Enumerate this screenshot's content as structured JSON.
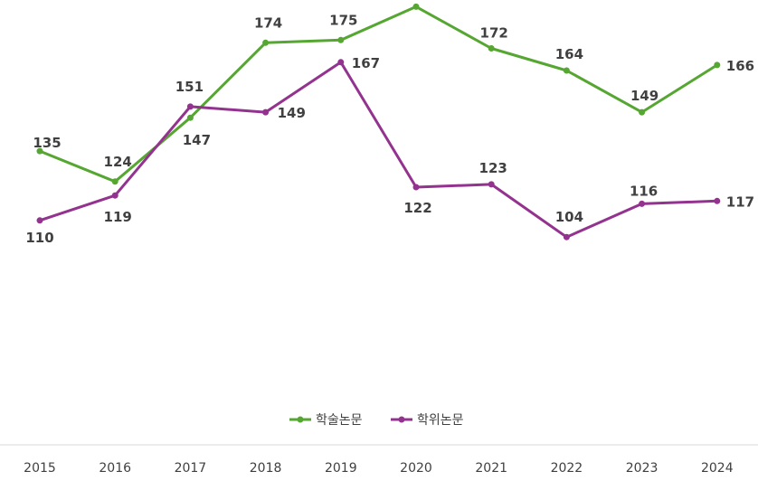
{
  "chart_data": {
    "type": "line",
    "title": "",
    "xlabel": "",
    "ylabel": "",
    "categories": [
      "2015",
      "2016",
      "2017",
      "2018",
      "2019",
      "2020",
      "2021",
      "2022",
      "2023",
      "2024"
    ],
    "series": [
      {
        "name": "학술논문",
        "color": "#56A632",
        "values": [
          135,
          124,
          147,
          174,
          175,
          187,
          172,
          164,
          149,
          166
        ]
      },
      {
        "name": "학위논문",
        "color": "#93338F",
        "values": [
          110,
          119,
          151,
          149,
          167,
          122,
          123,
          104,
          116,
          117
        ]
      }
    ],
    "ylim": [
      0,
      200
    ],
    "grid": false,
    "y_axis_visible": false,
    "data_labels": true,
    "legend_position": "bottom"
  }
}
